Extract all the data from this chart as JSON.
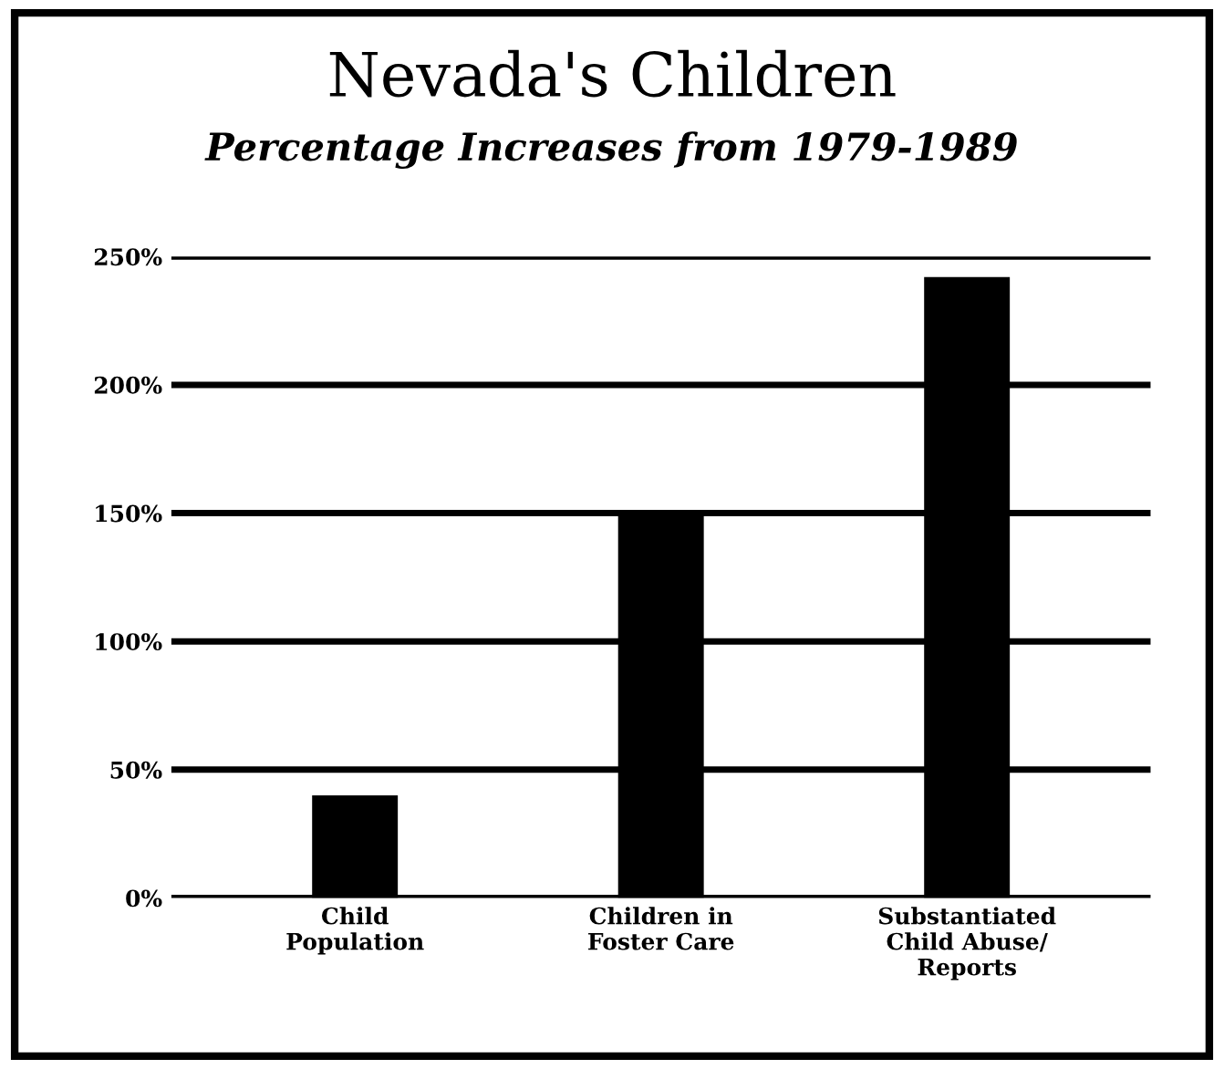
{
  "chart_data": {
    "type": "bar",
    "title": "Nevada's Children",
    "subtitle": "Percentage Increases from 1979-1989",
    "categories": [
      "Child\nPopulation",
      "Children in\nFoster Care",
      "Substantiated\nChild Abuse/\nReports"
    ],
    "values": [
      40,
      150,
      242
    ],
    "color": "#000000",
    "ylim": [
      0,
      250
    ],
    "yticks": [
      {
        "value": 0,
        "label": "0%"
      },
      {
        "value": 50,
        "label": "50%"
      },
      {
        "value": 100,
        "label": "100%"
      },
      {
        "value": 150,
        "label": "150%"
      },
      {
        "value": 200,
        "label": "200%"
      },
      {
        "value": 250,
        "label": "250%"
      }
    ],
    "grid": "y",
    "legend": false
  }
}
